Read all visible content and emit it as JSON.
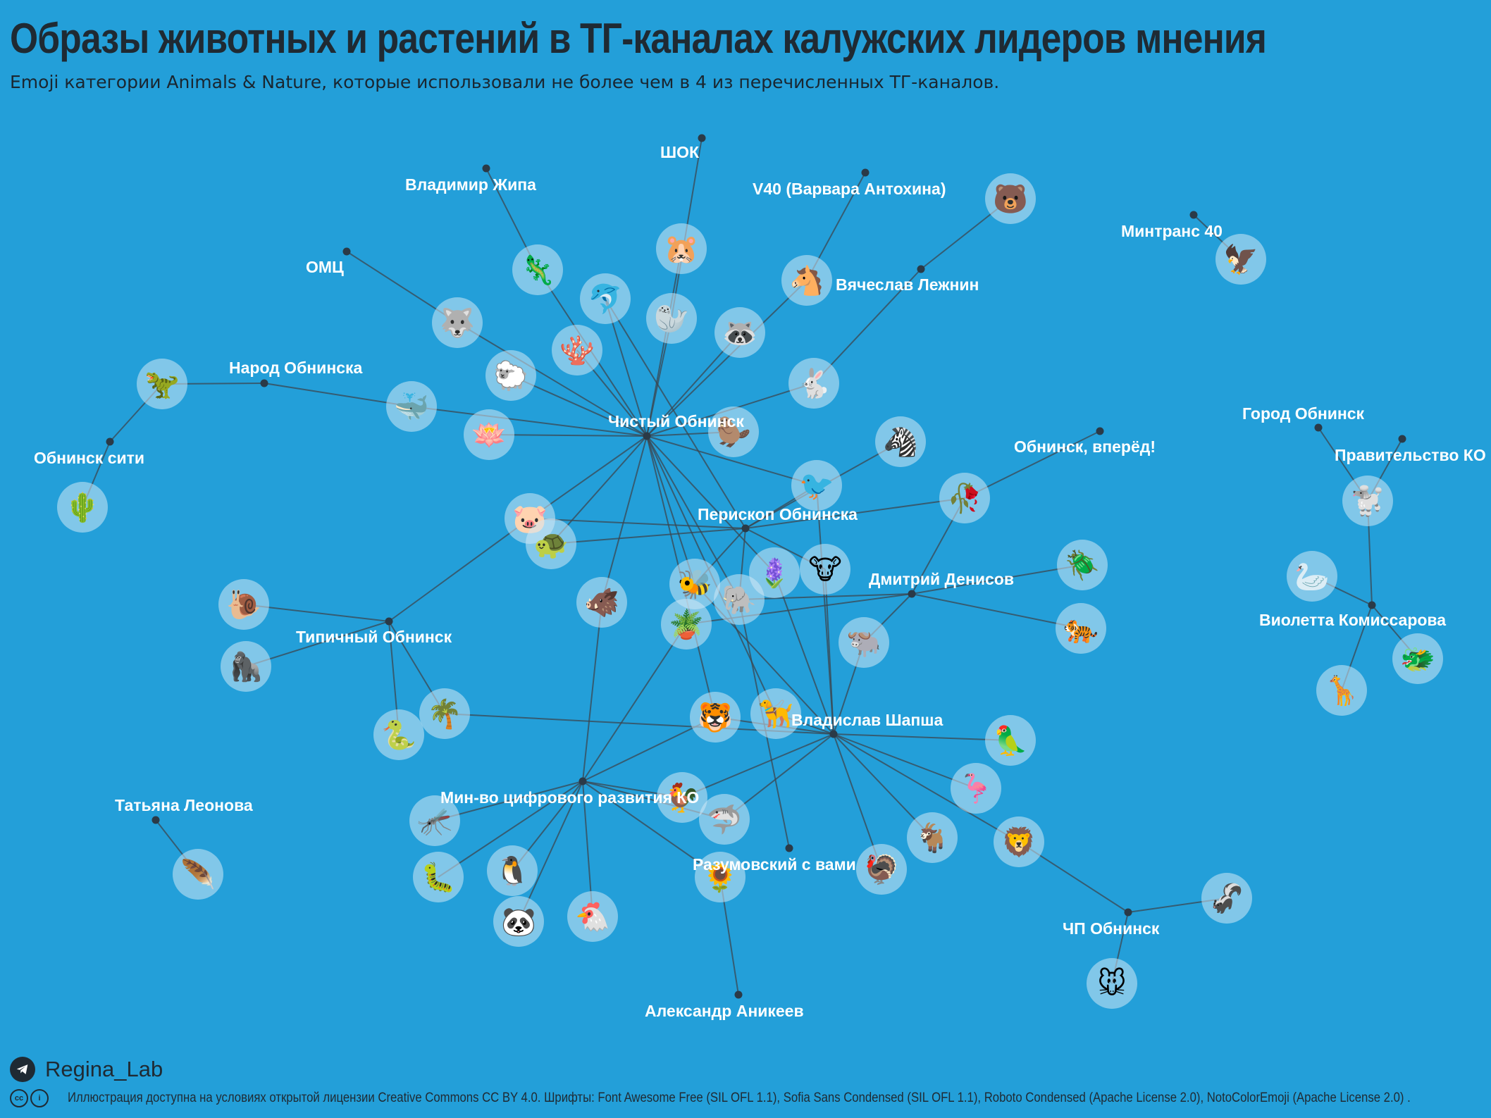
{
  "title": "Образы животных и растений в ТГ-каналах калужских лидеров мнения",
  "subtitle": "Emoji категории Animals & Nature, которые использовали не более чем в 4 из перечисленных ТГ-каналов.",
  "footer": {
    "brand": "Regina_Lab",
    "license": "Иллюстрация доступна на условиях открытой лицензии Creative Commons CC BY 4.0.  Шрифты: Font Awesome Free (SIL OFL 1.1), Sofia Sans Condensed (SIL OFL 1.1), Roboto Condensed (Apache License 2.0), NotoColorEmoji (Apache License 2.0) ."
  },
  "colors": {
    "background": "#239fd9",
    "edge": "#3b4650",
    "hub": "#2b3a47",
    "bubble": "#cfe8f5",
    "label": "#ffffff"
  },
  "network": {
    "channels": [
      {
        "id": "chisty",
        "name": "Чистый Обнинск"
      },
      {
        "id": "periskop",
        "name": "Перископ Обнинска"
      },
      {
        "id": "shapsha",
        "name": "Владислав Шапша"
      },
      {
        "id": "mincifr",
        "name": "Мин-во цифрового развития КО"
      },
      {
        "id": "denisov",
        "name": "Дмитрий Денисов"
      },
      {
        "id": "tipichny",
        "name": "Типичный Обнинск"
      },
      {
        "id": "narod",
        "name": "Народ Обнинска"
      },
      {
        "id": "obn_city",
        "name": "Обнинск сити"
      },
      {
        "id": "shok",
        "name": "ШОК"
      },
      {
        "id": "zhipa",
        "name": "Владимир Жипа"
      },
      {
        "id": "omc",
        "name": "ОМЦ"
      },
      {
        "id": "v40",
        "name": "V40 (Варвара Антохина)"
      },
      {
        "id": "lezhnin",
        "name": "Вячеслав Лежнин"
      },
      {
        "id": "mintrans",
        "name": "Минтранс 40"
      },
      {
        "id": "gorod",
        "name": "Город Обнинск"
      },
      {
        "id": "pravitelstvo",
        "name": "Правительство КО"
      },
      {
        "id": "komissarova",
        "name": "Виолетта Комиссарова"
      },
      {
        "id": "vpered",
        "name": "Обнинск, вперёд!"
      },
      {
        "id": "leonova",
        "name": "Татьяна Леонова"
      },
      {
        "id": "razumovsky",
        "name": "Разумовский с вами"
      },
      {
        "id": "anikeev",
        "name": "Александр Аникеев"
      },
      {
        "id": "chp",
        "name": "ЧП Обнинск"
      }
    ],
    "emojis": [
      {
        "id": "bear",
        "glyph": "🐻",
        "channels": [
          "lezhnin"
        ]
      },
      {
        "id": "eagle",
        "glyph": "🦅",
        "channels": [
          "mintrans"
        ]
      },
      {
        "id": "hamster",
        "glyph": "🐹",
        "channels": [
          "chisty"
        ]
      },
      {
        "id": "lizard",
        "glyph": "🦎",
        "channels": [
          "zhipa",
          "chisty"
        ]
      },
      {
        "id": "dolphin",
        "glyph": "🐬",
        "channels": [
          "chisty",
          "periskop"
        ]
      },
      {
        "id": "horse",
        "glyph": "🐴",
        "channels": [
          "v40",
          "chisty"
        ]
      },
      {
        "id": "wolf",
        "glyph": "🐺",
        "channels": [
          "omc",
          "chisty"
        ]
      },
      {
        "id": "seal",
        "glyph": "🦭",
        "channels": [
          "shok",
          "chisty"
        ]
      },
      {
        "id": "raccoon",
        "glyph": "🦝",
        "channels": [
          "chisty"
        ]
      },
      {
        "id": "coral",
        "glyph": "🪸",
        "channels": [
          "chisty"
        ]
      },
      {
        "id": "sheep",
        "glyph": "🐑",
        "channels": [
          "chisty"
        ]
      },
      {
        "id": "rabbit",
        "glyph": "🐇",
        "channels": [
          "lezhnin",
          "chisty"
        ]
      },
      {
        "id": "trex",
        "glyph": "🦖",
        "channels": [
          "narod",
          "obn_city"
        ]
      },
      {
        "id": "whale",
        "glyph": "🐳",
        "channels": [
          "narod",
          "chisty"
        ]
      },
      {
        "id": "lotus",
        "glyph": "🪷",
        "channels": [
          "chisty"
        ]
      },
      {
        "id": "beaver",
        "glyph": "🦫",
        "channels": [
          "chisty"
        ]
      },
      {
        "id": "zebra",
        "glyph": "🦓",
        "channels": [
          "periskop"
        ]
      },
      {
        "id": "cactus",
        "glyph": "🌵",
        "channels": [
          "obn_city"
        ]
      },
      {
        "id": "bird",
        "glyph": "🐦",
        "channels": [
          "chisty",
          "periskop",
          "shapsha"
        ]
      },
      {
        "id": "wilted_rose",
        "glyph": "🥀",
        "channels": [
          "vpered",
          "periskop",
          "denisov"
        ]
      },
      {
        "id": "pig",
        "glyph": "🐷",
        "channels": [
          "chisty",
          "periskop",
          "tipichny"
        ]
      },
      {
        "id": "turtle",
        "glyph": "🐢",
        "channels": [
          "periskop",
          "chisty"
        ]
      },
      {
        "id": "beetle",
        "glyph": "🪲",
        "channels": [
          "denisov"
        ]
      },
      {
        "id": "poodle",
        "glyph": "🐩",
        "channels": [
          "gorod",
          "pravitelstvo",
          "komissarova"
        ]
      },
      {
        "id": "hyacinth",
        "glyph": "🪻",
        "channels": [
          "chisty",
          "shapsha"
        ]
      },
      {
        "id": "cow",
        "glyph": "🐮",
        "channels": [
          "periskop",
          "shapsha"
        ]
      },
      {
        "id": "bee",
        "glyph": "🐝",
        "channels": [
          "chisty",
          "periskop",
          "shapsha"
        ]
      },
      {
        "id": "boar",
        "glyph": "🐗",
        "channels": [
          "chisty",
          "mincifr"
        ]
      },
      {
        "id": "snail",
        "glyph": "🐌",
        "channels": [
          "tipichny"
        ]
      },
      {
        "id": "elephant",
        "glyph": "🐘",
        "channels": [
          "chisty",
          "periskop",
          "denisov",
          "razumovsky"
        ]
      },
      {
        "id": "swan",
        "glyph": "🦢",
        "channels": [
          "komissarova"
        ]
      },
      {
        "id": "tiger_stripes",
        "glyph": "🐅",
        "channels": [
          "denisov"
        ]
      },
      {
        "id": "potted_plant",
        "glyph": "🪴",
        "channels": [
          "denisov",
          "mincifr"
        ]
      },
      {
        "id": "gorilla",
        "glyph": "🦍",
        "channels": [
          "tipichny"
        ]
      },
      {
        "id": "water_buffalo",
        "glyph": "🐃",
        "channels": [
          "denisov",
          "shapsha"
        ]
      },
      {
        "id": "dragon",
        "glyph": "🐲",
        "channels": [
          "komissarova"
        ]
      },
      {
        "id": "palm",
        "glyph": "🌴",
        "channels": [
          "tipichny",
          "shapsha"
        ]
      },
      {
        "id": "giraffe",
        "glyph": "🦒",
        "channels": [
          "komissarova"
        ]
      },
      {
        "id": "tiger_face",
        "glyph": "🐯",
        "channels": [
          "chisty",
          "mincifr",
          "shapsha"
        ]
      },
      {
        "id": "guide_dog",
        "glyph": "🦮",
        "channels": [
          "chisty",
          "shapsha"
        ]
      },
      {
        "id": "parrot",
        "glyph": "🦜",
        "channels": [
          "shapsha"
        ]
      },
      {
        "id": "snake",
        "glyph": "🐍",
        "channels": [
          "tipichny"
        ]
      },
      {
        "id": "rooster",
        "glyph": "🐓",
        "channels": [
          "mincifr",
          "shapsha"
        ]
      },
      {
        "id": "flamingo",
        "glyph": "🦩",
        "channels": [
          "shapsha"
        ]
      },
      {
        "id": "mosquito",
        "glyph": "🦟",
        "channels": [
          "mincifr"
        ]
      },
      {
        "id": "shark",
        "glyph": "🦈",
        "channels": [
          "mincifr",
          "shapsha"
        ]
      },
      {
        "id": "goat",
        "glyph": "🐐",
        "channels": [
          "shapsha"
        ]
      },
      {
        "id": "lion",
        "glyph": "🦁",
        "channels": [
          "shapsha",
          "chp"
        ]
      },
      {
        "id": "feather",
        "glyph": "🪶",
        "channels": [
          "leonova"
        ]
      },
      {
        "id": "caterpillar",
        "glyph": "🐛",
        "channels": [
          "mincifr"
        ]
      },
      {
        "id": "penguin",
        "glyph": "🐧",
        "channels": [
          "mincifr"
        ]
      },
      {
        "id": "sunflower",
        "glyph": "🌻",
        "channels": [
          "mincifr",
          "anikeev"
        ]
      },
      {
        "id": "turkey",
        "glyph": "🦃",
        "channels": [
          "shapsha"
        ]
      },
      {
        "id": "skunk",
        "glyph": "🦨",
        "channels": [
          "chp"
        ]
      },
      {
        "id": "panda",
        "glyph": "🐼",
        "channels": [
          "mincifr"
        ]
      },
      {
        "id": "chicken",
        "glyph": "🐔",
        "channels": [
          "mincifr"
        ]
      },
      {
        "id": "mouse",
        "glyph": "🐭",
        "channels": [
          "chp"
        ]
      }
    ]
  }
}
